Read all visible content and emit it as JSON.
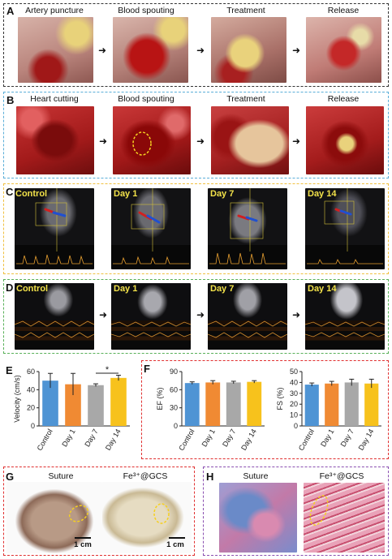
{
  "panels": {
    "A": {
      "label": "A",
      "border_color": "#333333",
      "captions": [
        "Artery puncture",
        "Blood spouting",
        "Treatment",
        "Release"
      ]
    },
    "B": {
      "label": "B",
      "border_color": "#5aaed8",
      "captions": [
        "Heart cutting",
        "Blood spouting",
        "Treatment",
        "Release"
      ]
    },
    "C": {
      "label": "C",
      "border_color": "#f0c040",
      "captions": [
        "Control",
        "Day 1",
        "Day 7",
        "Day 14"
      ]
    },
    "D": {
      "label": "D",
      "border_color": "#58b058",
      "captions": [
        "Control",
        "Day 1",
        "Day 7",
        "Day 14"
      ]
    },
    "E": {
      "label": "E"
    },
    "F": {
      "label": "F",
      "border_color": "#e03030"
    },
    "G": {
      "label": "G",
      "border_color": "#e03030",
      "captions": [
        "Suture",
        "Fe³⁺@GCS"
      ],
      "scale": "1 cm"
    },
    "H": {
      "label": "H",
      "border_color": "#8a4fb0",
      "captions": [
        "Suture",
        "Fe³⁺@GCS"
      ]
    }
  },
  "colors": {
    "Control": "#4f94d4",
    "Day 1": "#f08a33",
    "Day 7": "#a8a8a8",
    "Day 14": "#f7c21c"
  },
  "chart_data": [
    {
      "type": "bar",
      "panel": "E",
      "categories": [
        "Control",
        "Day 1",
        "Day 7",
        "Day 14"
      ],
      "values": [
        50,
        46,
        45,
        53
      ],
      "errors": [
        8,
        12,
        1.5,
        3
      ],
      "ylabel": "Velocity (cm/s)",
      "ylim": [
        0,
        60
      ],
      "yticks": [
        0,
        20,
        40,
        60
      ],
      "annotation": "*"
    },
    {
      "type": "bar",
      "panel": "F",
      "categories": [
        "Control",
        "Day 1",
        "Day 7",
        "Day 14"
      ],
      "values": [
        71,
        72,
        72,
        73
      ],
      "errors": [
        2,
        3,
        2,
        2
      ],
      "ylabel": "EF (%)",
      "ylim": [
        0,
        90
      ],
      "yticks": [
        0,
        30,
        60,
        90
      ]
    },
    {
      "type": "bar",
      "panel": "F",
      "categories": [
        "Control",
        "Day 1",
        "Day 7",
        "Day 14"
      ],
      "values": [
        38,
        39,
        40,
        39
      ],
      "errors": [
        1.5,
        2,
        3,
        4
      ],
      "ylabel": "FS (%)",
      "ylim": [
        0,
        50
      ],
      "yticks": [
        0,
        10,
        20,
        30,
        40,
        50
      ]
    }
  ]
}
